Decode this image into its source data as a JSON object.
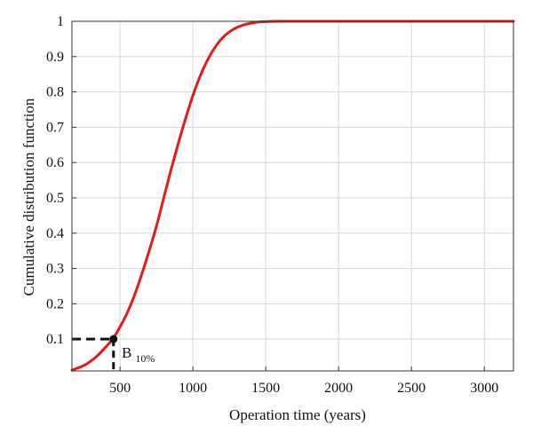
{
  "chart_data": {
    "type": "line",
    "xlabel": "Operation time (years)",
    "ylabel": "Cumulative distribution function",
    "xlim": [
      170,
      3200
    ],
    "ylim": [
      0.01,
      1
    ],
    "xticks": [
      500,
      1000,
      1500,
      2000,
      2500,
      3000
    ],
    "yticks": [
      0.1,
      0.2,
      0.3,
      0.4,
      0.5,
      0.6,
      0.7,
      0.8,
      0.9,
      1
    ],
    "xtick_labels": [
      "500",
      "1000",
      "1500",
      "2000",
      "2500",
      "3000"
    ],
    "ytick_labels": [
      "0.1",
      "0.2",
      "0.3",
      "0.4",
      "0.5",
      "0.6",
      "0.7",
      "0.8",
      "0.9",
      "1"
    ],
    "grid": true,
    "series": [
      {
        "color": "#e41a1c",
        "points": [
          [
            170,
            0.012
          ],
          [
            250,
            0.025
          ],
          [
            300,
            0.038
          ],
          [
            350,
            0.055
          ],
          [
            400,
            0.077
          ],
          [
            450,
            0.1
          ],
          [
            500,
            0.135
          ],
          [
            550,
            0.175
          ],
          [
            600,
            0.225
          ],
          [
            650,
            0.285
          ],
          [
            700,
            0.35
          ],
          [
            750,
            0.42
          ],
          [
            800,
            0.5
          ],
          [
            850,
            0.58
          ],
          [
            900,
            0.655
          ],
          [
            950,
            0.725
          ],
          [
            1000,
            0.79
          ],
          [
            1050,
            0.845
          ],
          [
            1100,
            0.89
          ],
          [
            1150,
            0.925
          ],
          [
            1200,
            0.952
          ],
          [
            1250,
            0.97
          ],
          [
            1300,
            0.982
          ],
          [
            1350,
            0.99
          ],
          [
            1400,
            0.995
          ],
          [
            1450,
            0.998
          ],
          [
            1500,
            0.999
          ],
          [
            1600,
            1.0
          ],
          [
            2000,
            1.0
          ],
          [
            2500,
            1.0
          ],
          [
            3000,
            1.0
          ],
          [
            3200,
            1.0
          ]
        ]
      }
    ],
    "annotations": [
      {
        "type": "marker",
        "x": 455,
        "y": 0.1,
        "label": "B",
        "label_subscript": "10%"
      }
    ],
    "reference_lines": {
      "color": "#111111",
      "style": "dashed",
      "x": 455,
      "y": 0.1
    }
  }
}
